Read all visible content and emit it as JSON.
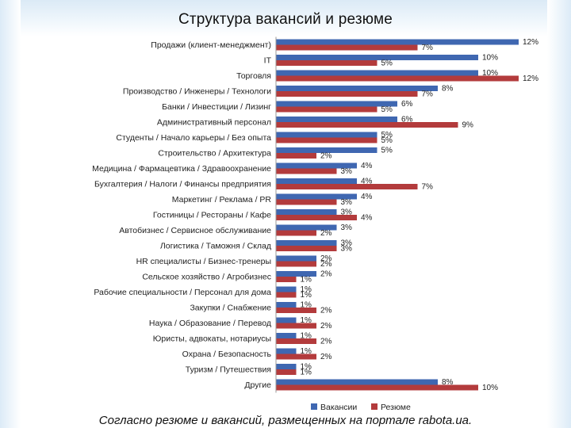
{
  "title": "Структура вакансий и резюме",
  "footer": "Согласно резюме и вакансий, размещенных на портале rabota.ua.",
  "colors": {
    "vacancies": "#3f67b1",
    "resumes": "#b33b3c",
    "background": "#ffffff"
  },
  "chart_data": {
    "type": "bar",
    "orientation": "horizontal",
    "title": "Структура вакансий и резюме",
    "categories": [
      "Продажи (клиент-менеджмент)",
      "IT",
      "Торговля",
      "Производство / Инженеры / Технологи",
      "Банки / Инвестиции / Лизинг",
      "Административный персонал",
      "Студенты / Начало карьеры / Без опыта",
      "Строительство / Архитектура",
      "Медицина / Фармацевтика / Здравоохранение",
      "Бухгалтерия / Налоги / Финансы предприятия",
      "Маркетинг / Реклама / PR",
      "Гостиницы / Рестораны / Кафе",
      "Автобизнес / Сервисное обслуживание",
      "Логистика / Таможня / Склад",
      "HR специалисты / Бизнес-тренеры",
      "Сельское хозяйство / Агробизнес",
      "Рабочие специальности / Персонал для дома",
      "Закупки / Снабжение",
      "Наука / Образование / Перевод",
      "Юристы, адвокаты, нотариусы",
      "Охрана / Безопасность",
      "Туризм / Путешествия",
      "Другие"
    ],
    "series": [
      {
        "name": "Вакансии",
        "values": [
          12,
          10,
          10,
          8,
          6,
          6,
          5,
          5,
          4,
          4,
          4,
          3,
          3,
          3,
          2,
          2,
          1,
          1,
          1,
          1,
          1,
          1,
          8
        ],
        "labels": [
          "12%",
          "10%",
          "10%",
          "8%",
          "6%",
          "6%",
          "5%",
          "5%",
          "4%",
          "4%",
          "4%",
          "3%",
          "3%",
          "3%",
          "2%",
          "2%",
          "1%",
          "1%",
          "1%",
          "1%",
          "1%",
          "1%",
          "8%"
        ]
      },
      {
        "name": "Резюме",
        "values": [
          7,
          5,
          12,
          7,
          5,
          9,
          5,
          2,
          3,
          7,
          3,
          4,
          2,
          3,
          2,
          1,
          1,
          2,
          2,
          2,
          2,
          1,
          10
        ],
        "labels": [
          "7%",
          "5%",
          "12%",
          "7%",
          "5%",
          "9%",
          "5%",
          "2%",
          "3%",
          "7%",
          "3%",
          "4%",
          "2%",
          "3%",
          "2%",
          "1%",
          "1%",
          "2%",
          "2%",
          "2%",
          "2%",
          "1%",
          "10%"
        ]
      }
    ],
    "legend": {
      "position": "bottom",
      "entries": [
        "Вакансии",
        "Резюме"
      ]
    },
    "grid": false
  }
}
